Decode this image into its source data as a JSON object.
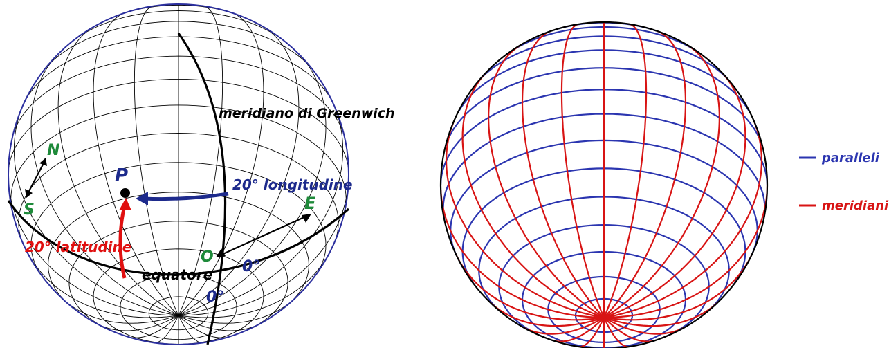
{
  "left_globe": {
    "labels": {
      "greenwich": "meridiano di Greenwich",
      "point": "P",
      "longitude": "20° longitudine",
      "latitude": "20° latitudine",
      "equator": "equatore",
      "north": "N",
      "south": "S",
      "east": "E",
      "west": "O",
      "zero_equator": "0°",
      "zero_meridian": "0°"
    },
    "colors": {
      "grid": "#000000",
      "outline": "#2b2f9e",
      "longitude": "#1d2a8c",
      "latitude": "#e01010",
      "cardinal": "#1e8a3a",
      "zero": "#1d2a8c"
    }
  },
  "right_globe": {
    "legend": [
      {
        "label": "paralleli",
        "color": "#2b35b0"
      },
      {
        "label": "meridiani",
        "color": "#d81414"
      }
    ]
  }
}
